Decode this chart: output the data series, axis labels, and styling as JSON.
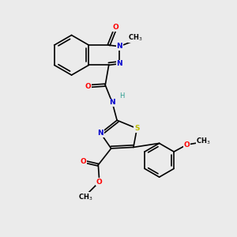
{
  "bg_color": "#ebebeb",
  "atom_colors": {
    "C": "#000000",
    "N": "#0000cc",
    "O": "#ff0000",
    "S": "#bbbb00",
    "H": "#2a9d8f"
  },
  "bond_color": "#000000",
  "font_size": 6.5,
  "line_width": 1.2
}
